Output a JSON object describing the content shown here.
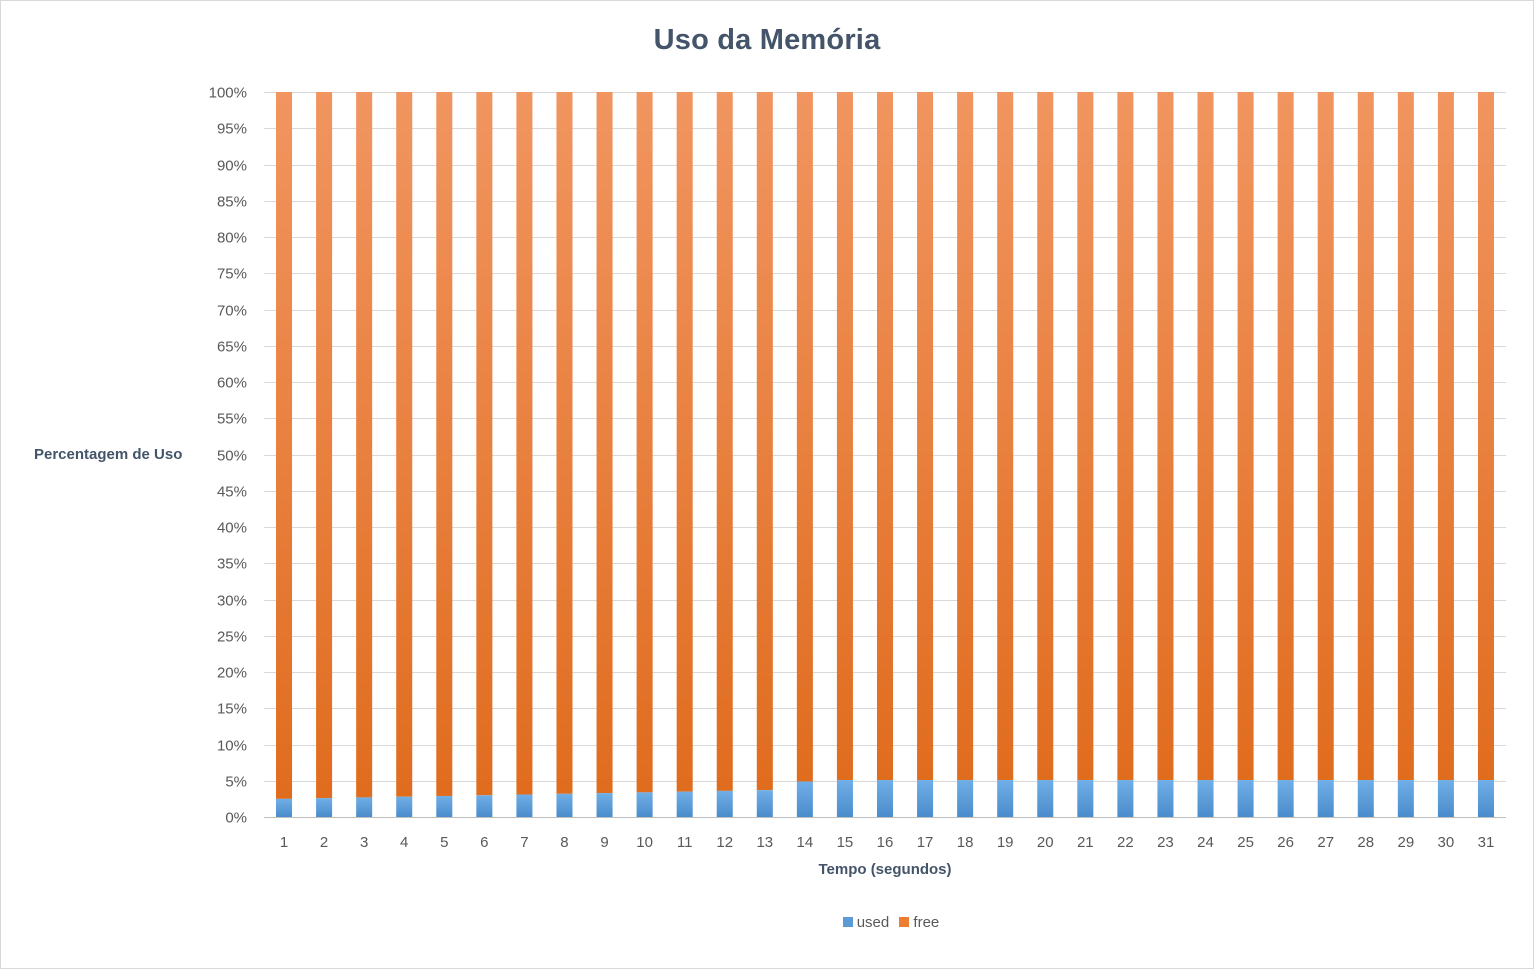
{
  "chart_data": {
    "type": "bar",
    "stacked": true,
    "percent_stacked": true,
    "title": "Uso da Memória",
    "xlabel": "Tempo (segundos)",
    "ylabel": "Percentagem de Uso",
    "categories": [
      "1",
      "2",
      "3",
      "4",
      "5",
      "6",
      "7",
      "8",
      "9",
      "10",
      "11",
      "12",
      "13",
      "14",
      "15",
      "16",
      "17",
      "18",
      "19",
      "20",
      "21",
      "22",
      "23",
      "24",
      "25",
      "26",
      "27",
      "28",
      "29",
      "30",
      "31"
    ],
    "series": [
      {
        "name": "used",
        "color": "#5b9bd5",
        "values": [
          2.5,
          2.6,
          2.7,
          2.8,
          2.9,
          3.0,
          3.1,
          3.2,
          3.3,
          3.4,
          3.5,
          3.6,
          3.7,
          4.9,
          5.1,
          5.1,
          5.1,
          5.1,
          5.1,
          5.1,
          5.1,
          5.1,
          5.1,
          5.1,
          5.1,
          5.1,
          5.1,
          5.1,
          5.1,
          5.1,
          5.1
        ]
      },
      {
        "name": "free",
        "color": "#ed7d31",
        "values": [
          97.5,
          97.4,
          97.3,
          97.2,
          97.1,
          97.0,
          96.9,
          96.8,
          96.7,
          96.6,
          96.5,
          96.4,
          96.3,
          95.1,
          94.9,
          94.9,
          94.9,
          94.9,
          94.9,
          94.9,
          94.9,
          94.9,
          94.9,
          94.9,
          94.9,
          94.9,
          94.9,
          94.9,
          94.9,
          94.9,
          94.9
        ]
      }
    ],
    "y_ticks": [
      "0%",
      "5%",
      "10%",
      "15%",
      "20%",
      "25%",
      "30%",
      "35%",
      "40%",
      "45%",
      "50%",
      "55%",
      "60%",
      "65%",
      "70%",
      "75%",
      "80%",
      "85%",
      "90%",
      "95%",
      "100%"
    ],
    "ylim": [
      0,
      100
    ],
    "grid": true,
    "legend_position": "bottom"
  }
}
